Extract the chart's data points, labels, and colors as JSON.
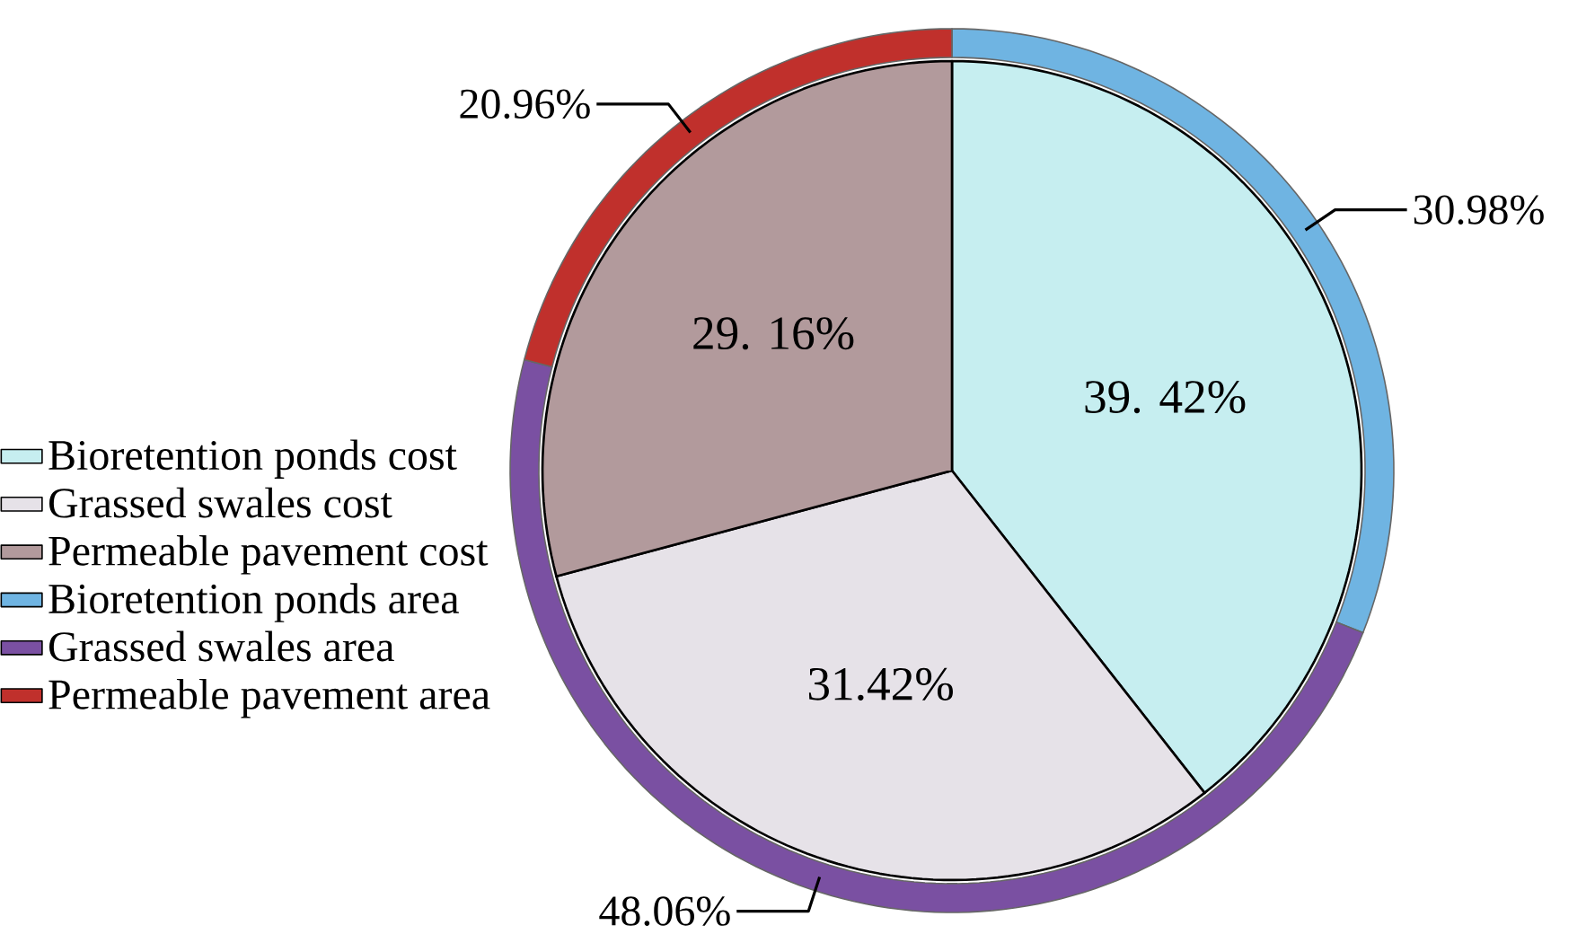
{
  "chart_data": {
    "type": "pie",
    "legend": "left",
    "categories": [
      "Bioretention ponds cost",
      "Grassed swales cost",
      "Permeable pavement cost",
      "Bioretention ponds area",
      "Grassed swales area",
      "Permeable pavement area"
    ],
    "colors": [
      "#c6eef0",
      "#e6e2e8",
      "#b29a9c",
      "#6fb4e2",
      "#7a50a2",
      "#c0302c"
    ],
    "series": [
      {
        "values": [
          39.42,
          31.42,
          29.16,
          null,
          null,
          null
        ],
        "value_labels": [
          "39. 42%",
          "31.42%",
          "29. 16%",
          null,
          null,
          null
        ]
      },
      {
        "type": "donut",
        "values": [
          null,
          null,
          null,
          30.98,
          48.06,
          20.96
        ],
        "value_labels": [
          null,
          null,
          null,
          "30.98%",
          "48.06%",
          "20.96%"
        ]
      }
    ]
  }
}
